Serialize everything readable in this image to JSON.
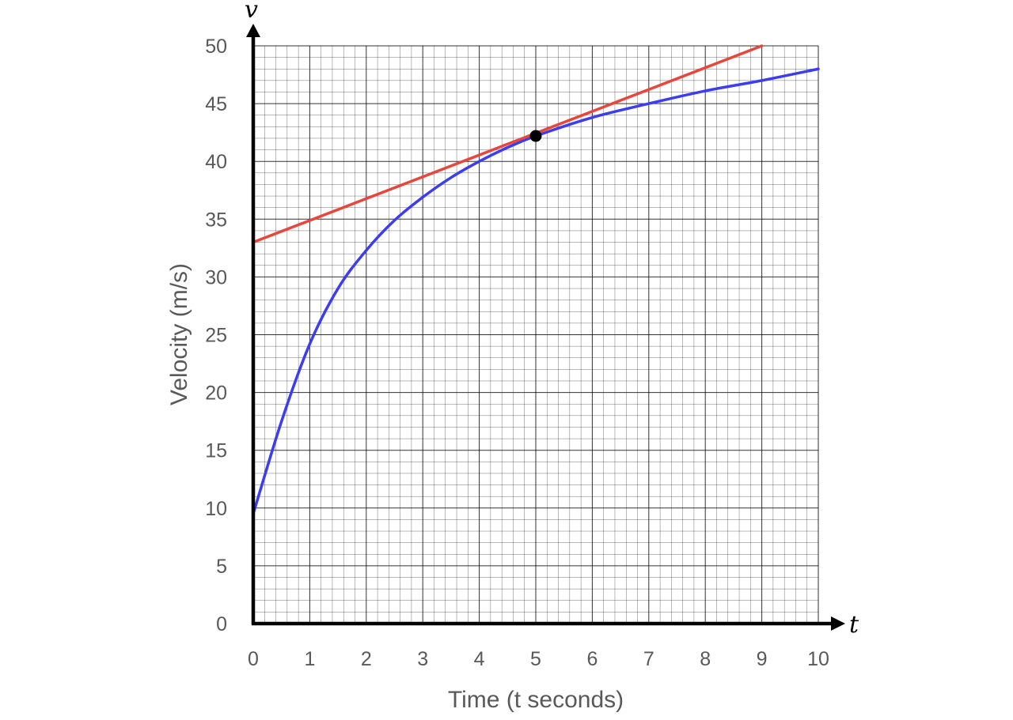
{
  "chart_data": {
    "type": "line",
    "title": "",
    "xlabel": "Time (t seconds)",
    "ylabel": "Velocity (m/s)",
    "x_axis_symbol": "t",
    "y_axis_symbol": "v",
    "xlim": [
      0,
      10
    ],
    "ylim": [
      0,
      50
    ],
    "x_ticks": [
      "0",
      "1",
      "2",
      "3",
      "4",
      "5",
      "6",
      "7",
      "8",
      "9",
      "10"
    ],
    "y_ticks": [
      "0",
      "5",
      "10",
      "15",
      "20",
      "25",
      "30",
      "35",
      "40",
      "45",
      "50"
    ],
    "grid": true,
    "grid_minor_step": [
      0.2,
      1
    ],
    "series": [
      {
        "color": "#3c3cf0",
        "x": [
          0,
          0.5,
          1,
          1.5,
          2,
          2.5,
          3,
          3.5,
          4,
          4.5,
          5,
          6,
          7,
          8,
          9,
          10
        ],
        "y": [
          9.5,
          17.5,
          24.2,
          29.0,
          32.3,
          34.9,
          36.9,
          38.6,
          40.0,
          41.2,
          42.2,
          43.8,
          45.0,
          46.1,
          47.0,
          48.0
        ]
      },
      {
        "color": "#e8463c",
        "x": [
          0,
          9
        ],
        "y": [
          33.0,
          50.0
        ]
      }
    ],
    "point": {
      "x": 5,
      "y": 42.2,
      "color": "#000000"
    },
    "axis_color": "#000000",
    "grid_color": "#000000"
  }
}
